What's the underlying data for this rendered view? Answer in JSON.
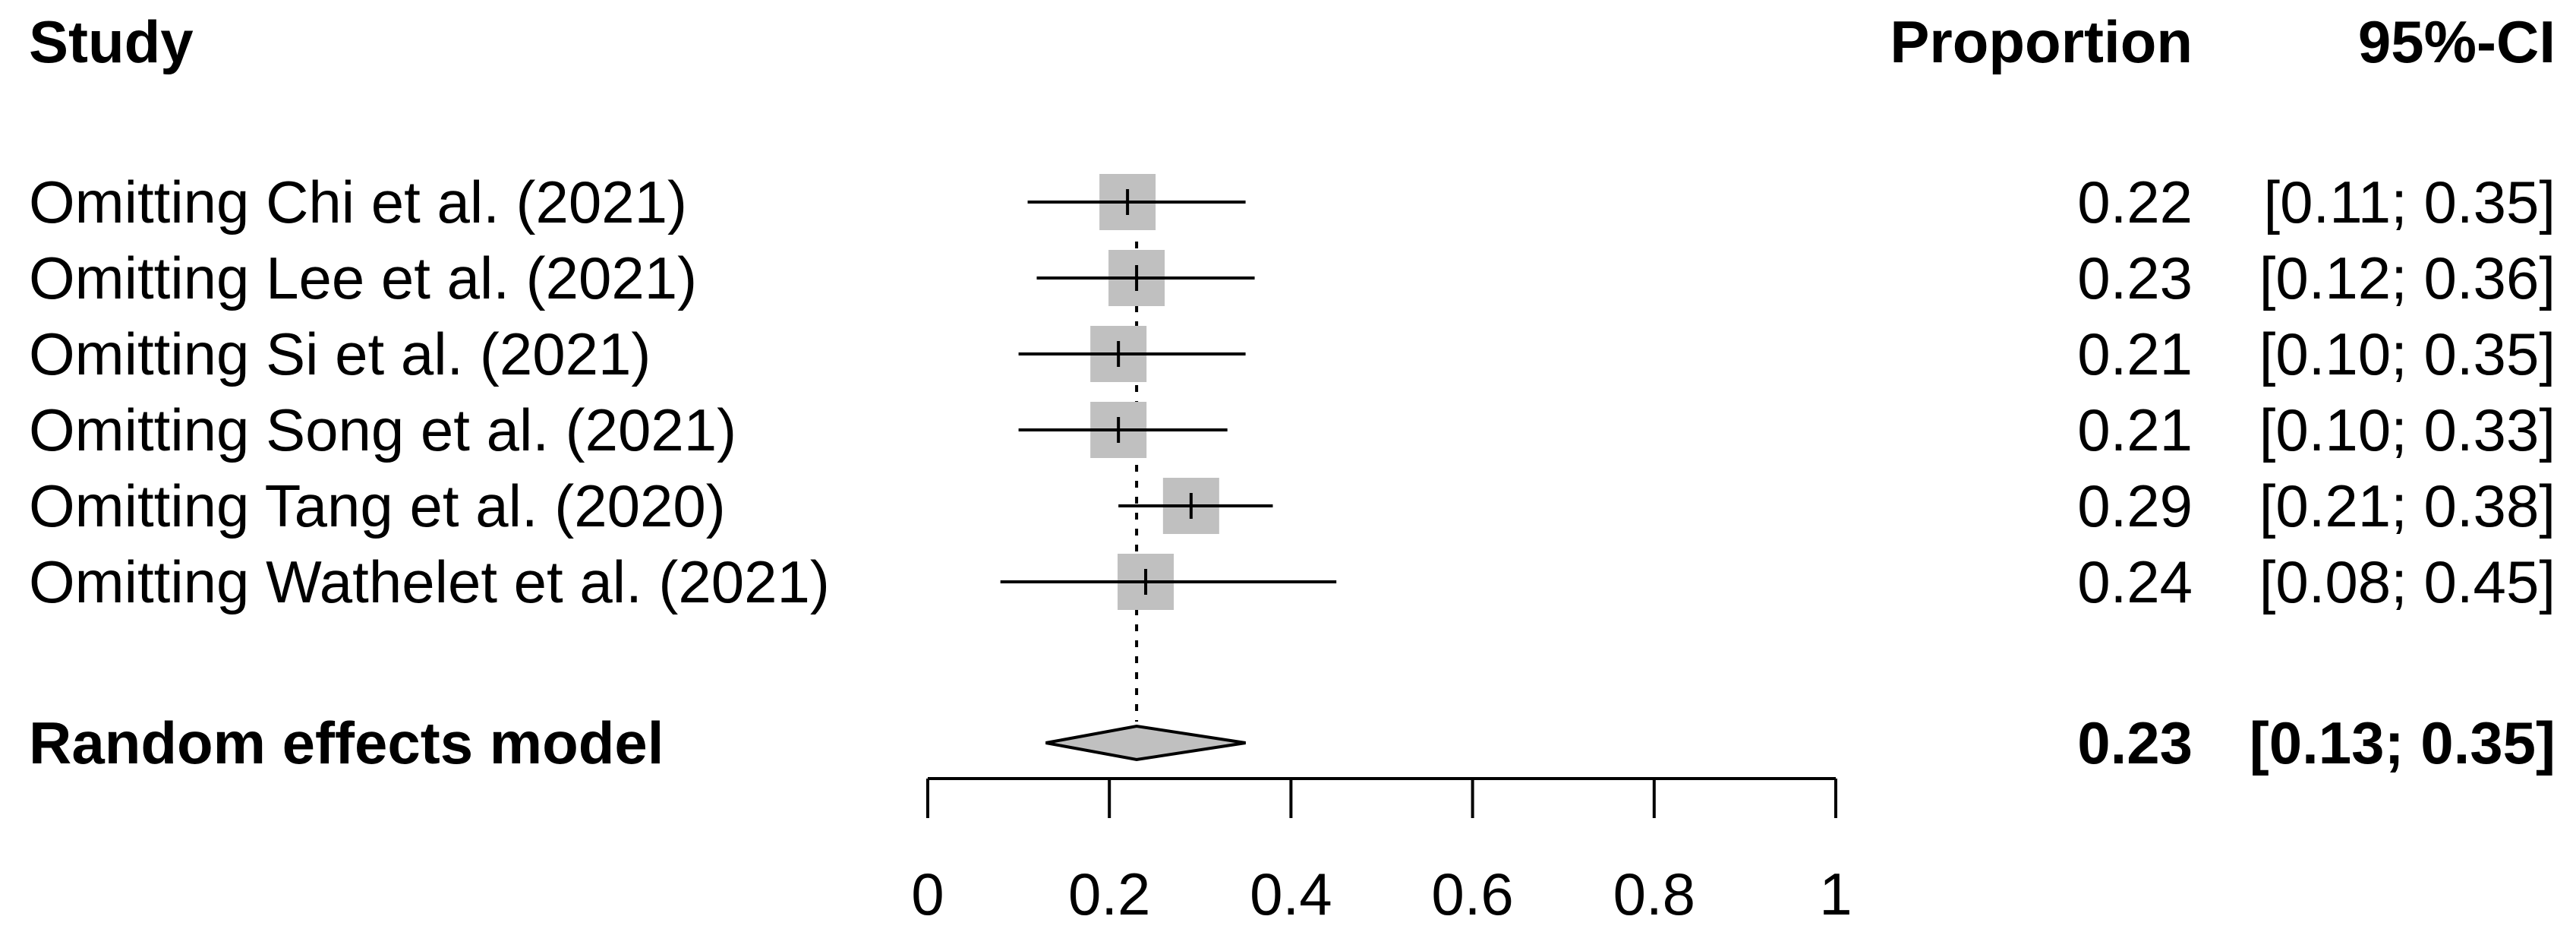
{
  "chart_data": {
    "type": "forest",
    "headers": {
      "study": "Study",
      "estimate": "Proportion",
      "ci": "95%-CI"
    },
    "studies": [
      {
        "label": "Omitting Chi et al. (2021)",
        "est": 0.22,
        "lo": 0.11,
        "hi": 0.35,
        "est_text": "0.22",
        "ci_text": "[0.11; 0.35]"
      },
      {
        "label": "Omitting Lee et al. (2021)",
        "est": 0.23,
        "lo": 0.12,
        "hi": 0.36,
        "est_text": "0.23",
        "ci_text": "[0.12; 0.36]"
      },
      {
        "label": "Omitting Si et al. (2021)",
        "est": 0.21,
        "lo": 0.1,
        "hi": 0.35,
        "est_text": "0.21",
        "ci_text": "[0.10; 0.35]"
      },
      {
        "label": "Omitting Song et al. (2021)",
        "est": 0.21,
        "lo": 0.1,
        "hi": 0.33,
        "est_text": "0.21",
        "ci_text": "[0.10; 0.33]"
      },
      {
        "label": "Omitting Tang et al. (2020)",
        "est": 0.29,
        "lo": 0.21,
        "hi": 0.38,
        "est_text": "0.29",
        "ci_text": "[0.21; 0.38]"
      },
      {
        "label": "Omitting Wathelet et al. (2021)",
        "est": 0.24,
        "lo": 0.08,
        "hi": 0.45,
        "est_text": "0.24",
        "ci_text": "[0.08; 0.45]"
      }
    ],
    "pooled": {
      "label": "Random effects model",
      "est": 0.23,
      "lo": 0.13,
      "hi": 0.35,
      "est_text": "0.23",
      "ci_text": "[0.13; 0.35]"
    },
    "x_axis": {
      "range": [
        0,
        1
      ],
      "ticks": [
        0,
        0.2,
        0.4,
        0.6,
        0.8,
        1
      ],
      "tick_labels": [
        "0",
        "0.2",
        "0.4",
        "0.6",
        "0.8",
        "1"
      ]
    },
    "reference_line": 0.23,
    "colors": {
      "box": "#c0c0c0",
      "diamond": "#c0c0c0",
      "line": "#000000",
      "text": "#000000"
    }
  }
}
